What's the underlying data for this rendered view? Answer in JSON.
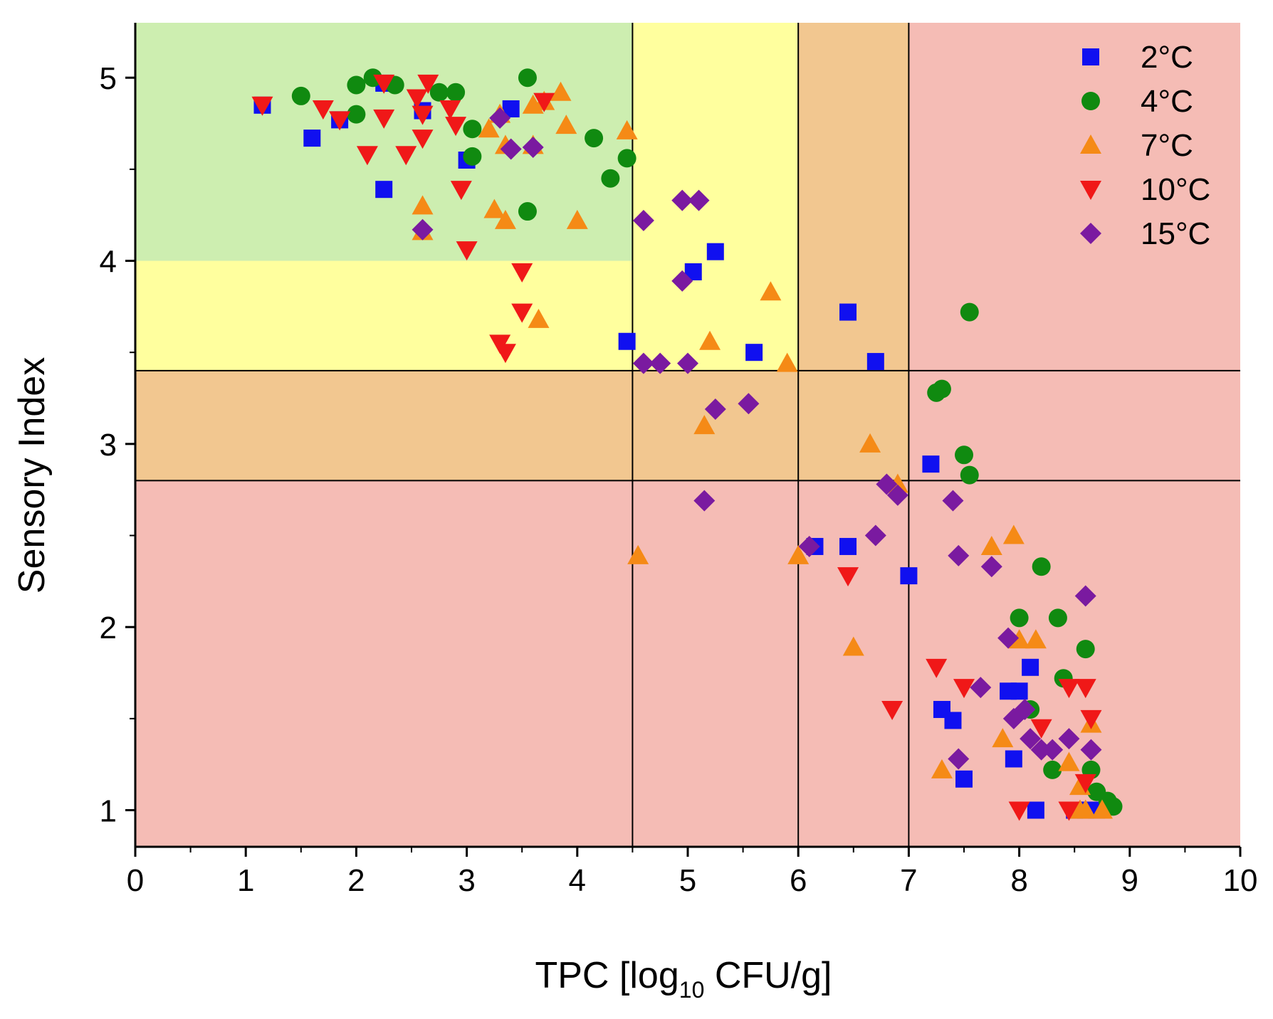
{
  "chart_data": {
    "type": "scatter",
    "title": "",
    "xlabel_main": "TPC [log",
    "xlabel_sub": "10",
    "xlabel_tail": " CFU/g]",
    "ylabel": "Sensory Index",
    "xlim": [
      0,
      10
    ],
    "ylim": [
      0.8,
      5.3
    ],
    "xticks": [
      0,
      1,
      2,
      3,
      4,
      5,
      6,
      7,
      8,
      9,
      10
    ],
    "yticks": [
      1,
      2,
      3,
      4,
      5
    ],
    "grid": false,
    "legend_position": "top-right",
    "zones": [
      {
        "name": "green-zone",
        "x": [
          0,
          4.5
        ],
        "y": [
          4.0,
          5.3
        ],
        "color": "#cdeeb0"
      },
      {
        "name": "yellow-zone-upper",
        "x": [
          4.5,
          6
        ],
        "y": [
          3.4,
          5.3
        ],
        "color": "#ffff9e"
      },
      {
        "name": "yellow-zone-left",
        "x": [
          0,
          4.5
        ],
        "y": [
          3.4,
          4.0
        ],
        "color": "#ffff9e"
      },
      {
        "name": "orange-zone-upper",
        "x": [
          6,
          7
        ],
        "y": [
          2.8,
          5.3
        ],
        "color": "#f2c790"
      },
      {
        "name": "orange-zone-left",
        "x": [
          0,
          6
        ],
        "y": [
          2.8,
          3.4
        ],
        "color": "#f2c790"
      },
      {
        "name": "red-zone-right",
        "x": [
          7,
          10
        ],
        "y": [
          0.8,
          5.3
        ],
        "color": "#f5bcb5"
      },
      {
        "name": "red-zone-bottom",
        "x": [
          0,
          7
        ],
        "y": [
          0.8,
          2.8
        ],
        "color": "#f5bcb5"
      }
    ],
    "thresholds_x": [
      4.5,
      6,
      7
    ],
    "thresholds_y": [
      3.4,
      2.8
    ],
    "series": [
      {
        "name": "2°C",
        "marker": "square",
        "color": "#1010f0",
        "points": [
          [
            1.15,
            4.85
          ],
          [
            1.6,
            4.67
          ],
          [
            1.85,
            4.77
          ],
          [
            2.25,
            4.97
          ],
          [
            2.25,
            4.39
          ],
          [
            2.6,
            4.82
          ],
          [
            3.0,
            4.55
          ],
          [
            3.4,
            4.83
          ],
          [
            4.45,
            3.56
          ],
          [
            5.05,
            3.94
          ],
          [
            5.25,
            4.05
          ],
          [
            5.6,
            3.5
          ],
          [
            6.45,
            3.72
          ],
          [
            6.7,
            3.45
          ],
          [
            6.15,
            2.44
          ],
          [
            6.45,
            2.44
          ],
          [
            7.0,
            2.28
          ],
          [
            7.2,
            2.89
          ],
          [
            7.3,
            1.55
          ],
          [
            7.4,
            1.49
          ],
          [
            7.5,
            1.17
          ],
          [
            7.9,
            1.65
          ],
          [
            8.1,
            1.78
          ],
          [
            8.0,
            1.65
          ],
          [
            7.95,
            1.28
          ],
          [
            8.15,
            1.0
          ],
          [
            8.5,
            1.0
          ],
          [
            8.6,
            1.0
          ],
          [
            8.7,
            1.0
          ]
        ]
      },
      {
        "name": "4°C",
        "marker": "circle",
        "color": "#108a10",
        "points": [
          [
            1.5,
            4.9
          ],
          [
            2.0,
            4.8
          ],
          [
            2.0,
            4.96
          ],
          [
            2.15,
            5.0
          ],
          [
            2.35,
            4.96
          ],
          [
            2.75,
            4.92
          ],
          [
            2.9,
            4.92
          ],
          [
            3.05,
            4.72
          ],
          [
            3.05,
            4.57
          ],
          [
            3.55,
            5.0
          ],
          [
            3.55,
            4.27
          ],
          [
            4.15,
            4.67
          ],
          [
            4.3,
            4.45
          ],
          [
            4.45,
            4.56
          ],
          [
            7.25,
            3.28
          ],
          [
            7.3,
            3.3
          ],
          [
            7.5,
            2.94
          ],
          [
            7.55,
            2.83
          ],
          [
            7.55,
            3.72
          ],
          [
            8.0,
            2.05
          ],
          [
            8.2,
            2.33
          ],
          [
            8.35,
            2.05
          ],
          [
            8.4,
            1.72
          ],
          [
            8.1,
            1.55
          ],
          [
            8.3,
            1.22
          ],
          [
            8.6,
            1.88
          ],
          [
            8.65,
            1.22
          ],
          [
            8.7,
            1.1
          ],
          [
            8.8,
            1.05
          ],
          [
            8.85,
            1.02
          ]
        ]
      },
      {
        "name": "7°C",
        "marker": "triangle-up",
        "color": "#f58a16",
        "points": [
          [
            3.2,
            4.72
          ],
          [
            3.3,
            4.8
          ],
          [
            3.35,
            4.63
          ],
          [
            3.6,
            4.63
          ],
          [
            3.6,
            4.85
          ],
          [
            3.7,
            4.87
          ],
          [
            3.85,
            4.92
          ],
          [
            3.9,
            4.74
          ],
          [
            4.45,
            4.71
          ],
          [
            2.6,
            4.3
          ],
          [
            2.6,
            4.16
          ],
          [
            3.25,
            4.28
          ],
          [
            3.35,
            4.22
          ],
          [
            4.0,
            4.22
          ],
          [
            3.65,
            3.68
          ],
          [
            5.2,
            3.56
          ],
          [
            5.75,
            3.83
          ],
          [
            5.9,
            3.44
          ],
          [
            5.15,
            3.1
          ],
          [
            6.65,
            3.0
          ],
          [
            6.9,
            2.78
          ],
          [
            4.55,
            2.39
          ],
          [
            6.0,
            2.39
          ],
          [
            6.5,
            1.89
          ],
          [
            7.75,
            2.44
          ],
          [
            7.95,
            2.5
          ],
          [
            8.0,
            1.93
          ],
          [
            8.15,
            1.93
          ],
          [
            7.85,
            1.39
          ],
          [
            7.3,
            1.22
          ],
          [
            8.45,
            1.26
          ],
          [
            8.55,
            1.13
          ],
          [
            8.65,
            1.47
          ],
          [
            8.55,
            1.0
          ],
          [
            8.75,
            1.0
          ],
          [
            8.6,
            1.0
          ]
        ]
      },
      {
        "name": "10°C",
        "marker": "triangle-down",
        "color": "#f01818",
        "points": [
          [
            1.15,
            4.85
          ],
          [
            1.7,
            4.83
          ],
          [
            1.85,
            4.77
          ],
          [
            2.1,
            4.58
          ],
          [
            2.25,
            4.78
          ],
          [
            2.25,
            4.97
          ],
          [
            2.45,
            4.58
          ],
          [
            2.55,
            4.89
          ],
          [
            2.6,
            4.8
          ],
          [
            2.65,
            4.97
          ],
          [
            2.6,
            4.67
          ],
          [
            2.85,
            4.83
          ],
          [
            2.9,
            4.74
          ],
          [
            3.7,
            4.87
          ],
          [
            2.95,
            4.39
          ],
          [
            3.0,
            4.06
          ],
          [
            3.5,
            3.94
          ],
          [
            3.5,
            3.72
          ],
          [
            3.3,
            3.55
          ],
          [
            3.35,
            3.5
          ],
          [
            6.45,
            2.28
          ],
          [
            6.85,
            1.55
          ],
          [
            7.25,
            1.78
          ],
          [
            7.5,
            1.67
          ],
          [
            8.0,
            1.0
          ],
          [
            8.2,
            1.45
          ],
          [
            8.45,
            1.67
          ],
          [
            8.6,
            1.67
          ],
          [
            8.65,
            1.5
          ],
          [
            8.45,
            1.0
          ],
          [
            8.6,
            1.15
          ]
        ]
      },
      {
        "name": "15°C",
        "marker": "diamond",
        "color": "#7a1aa0",
        "points": [
          [
            2.6,
            4.17
          ],
          [
            3.3,
            4.78
          ],
          [
            3.4,
            4.61
          ],
          [
            3.6,
            4.62
          ],
          [
            4.6,
            4.22
          ],
          [
            4.95,
            4.33
          ],
          [
            5.1,
            4.33
          ],
          [
            4.95,
            3.89
          ],
          [
            4.6,
            3.44
          ],
          [
            4.75,
            3.44
          ],
          [
            5.0,
            3.44
          ],
          [
            5.25,
            3.19
          ],
          [
            5.55,
            3.22
          ],
          [
            5.15,
            2.69
          ],
          [
            6.1,
            2.44
          ],
          [
            6.7,
            2.5
          ],
          [
            6.8,
            2.78
          ],
          [
            6.9,
            2.72
          ],
          [
            7.4,
            2.69
          ],
          [
            7.45,
            2.39
          ],
          [
            7.75,
            2.33
          ],
          [
            7.9,
            1.94
          ],
          [
            7.65,
            1.67
          ],
          [
            7.95,
            1.5
          ],
          [
            8.05,
            1.55
          ],
          [
            8.1,
            1.39
          ],
          [
            8.2,
            1.33
          ],
          [
            8.3,
            1.33
          ],
          [
            8.45,
            1.39
          ],
          [
            8.6,
            2.17
          ],
          [
            8.65,
            1.33
          ],
          [
            7.45,
            1.28
          ]
        ]
      }
    ]
  }
}
